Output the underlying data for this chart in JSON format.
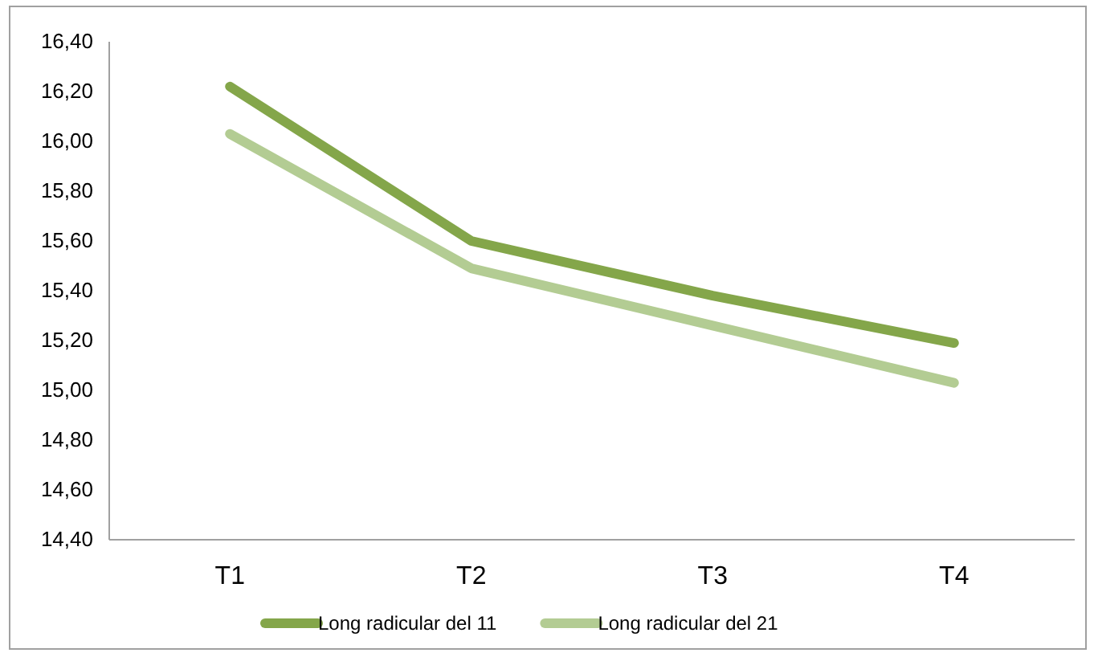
{
  "chart_data": {
    "type": "line",
    "categories": [
      "T1",
      "T2",
      "T3",
      "T4"
    ],
    "series": [
      {
        "name": "Long radicular  del 11",
        "color": "#84a64a",
        "values": [
          16.22,
          15.6,
          15.38,
          15.19
        ]
      },
      {
        "name": "Long radicular  del  21",
        "color": "#b3cc93",
        "values": [
          16.03,
          15.49,
          15.26,
          15.03
        ]
      }
    ],
    "ylim": [
      14.4,
      16.4
    ],
    "yticks": [
      {
        "value": 14.4,
        "label": "14,40"
      },
      {
        "value": 14.6,
        "label": "14,60"
      },
      {
        "value": 14.8,
        "label": "14,80"
      },
      {
        "value": 15.0,
        "label": "15,00"
      },
      {
        "value": 15.2,
        "label": "15,20"
      },
      {
        "value": 15.4,
        "label": "15,40"
      },
      {
        "value": 15.6,
        "label": "15,60"
      },
      {
        "value": 15.8,
        "label": "15,80"
      },
      {
        "value": 16.0,
        "label": "16,00"
      },
      {
        "value": 16.2,
        "label": "16,20"
      },
      {
        "value": 16.4,
        "label": "16,40"
      }
    ],
    "grid": false,
    "legend": "bottom",
    "marker": "none",
    "line_style": "solid"
  }
}
